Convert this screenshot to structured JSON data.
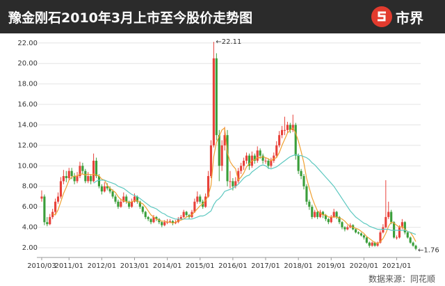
{
  "chart_data": {
    "type": "candlestick",
    "title": "豫金刚石2010年3月上市至今股价走势图",
    "logo": "市界",
    "source": "数据来源：同花顺",
    "categories": [
      "2010/03",
      null,
      null,
      null,
      null,
      null,
      null,
      null,
      null,
      null,
      "2011/01",
      null,
      null,
      null,
      null,
      null,
      null,
      null,
      null,
      null,
      null,
      null,
      "2012/01",
      null,
      null,
      null,
      null,
      null,
      null,
      null,
      null,
      null,
      null,
      null,
      "2013/01",
      null,
      null,
      null,
      null,
      null,
      null,
      null,
      null,
      null,
      null,
      null,
      "2014/01",
      null,
      null,
      null,
      null,
      null,
      null,
      null,
      null,
      null,
      null,
      null,
      "2015/01",
      null,
      null,
      null,
      null,
      null,
      null,
      null,
      null,
      null,
      null,
      null,
      "2016/01",
      null,
      null,
      null,
      null,
      null,
      null,
      null,
      null,
      null,
      null,
      null,
      "2017/01",
      null,
      null,
      null,
      null,
      null,
      null,
      null,
      null,
      null,
      null,
      null,
      "2018/01",
      null,
      null,
      null,
      null,
      null,
      null,
      null,
      null,
      null,
      null,
      null,
      "2019/01",
      null,
      null,
      null,
      null,
      null,
      null,
      null,
      null,
      null,
      null,
      null,
      "2020/01",
      null,
      null,
      null,
      null,
      null,
      null,
      null,
      null,
      null,
      null,
      null,
      "2021/01",
      null,
      null,
      null,
      null,
      null,
      null,
      null
    ],
    "candles": [
      [
        6.8,
        7.6,
        6.5,
        7.0
      ],
      [
        7.0,
        7.2,
        4.2,
        4.5
      ],
      [
        4.5,
        5.0,
        4.1,
        4.3
      ],
      [
        4.3,
        5.3,
        4.2,
        5.0
      ],
      [
        5.0,
        5.8,
        4.8,
        5.5
      ],
      [
        5.5,
        6.8,
        5.3,
        6.5
      ],
      [
        6.5,
        7.4,
        6.3,
        7.0
      ],
      [
        7.0,
        8.9,
        6.8,
        8.5
      ],
      [
        8.5,
        9.6,
        8.2,
        9.0
      ],
      [
        9.0,
        9.5,
        8.4,
        8.8
      ],
      [
        8.8,
        9.8,
        8.6,
        9.5
      ],
      [
        9.5,
        9.8,
        8.7,
        9.0
      ],
      [
        9.0,
        9.3,
        8.2,
        8.5
      ],
      [
        8.5,
        9.4,
        8.3,
        9.0
      ],
      [
        9.0,
        10.4,
        8.8,
        10.0
      ],
      [
        10.0,
        10.3,
        9.2,
        9.5
      ],
      [
        9.5,
        9.7,
        8.3,
        8.5
      ],
      [
        8.5,
        9.4,
        8.3,
        9.0
      ],
      [
        9.0,
        9.2,
        8.2,
        8.5
      ],
      [
        8.5,
        11.2,
        8.4,
        10.5
      ],
      [
        10.5,
        10.8,
        8.8,
        9.0
      ],
      [
        9.0,
        9.2,
        7.8,
        8.0
      ],
      [
        8.0,
        8.2,
        7.2,
        7.5
      ],
      [
        7.5,
        8.4,
        7.4,
        8.0
      ],
      [
        8.0,
        8.3,
        7.6,
        7.8
      ],
      [
        7.8,
        8.0,
        7.3,
        7.5
      ],
      [
        7.5,
        7.7,
        6.8,
        7.0
      ],
      [
        7.0,
        7.2,
        6.3,
        6.5
      ],
      [
        6.5,
        6.7,
        5.8,
        6.0
      ],
      [
        6.0,
        6.8,
        5.9,
        6.5
      ],
      [
        6.5,
        7.4,
        6.4,
        7.0
      ],
      [
        7.0,
        7.2,
        6.3,
        6.5
      ],
      [
        6.5,
        6.6,
        5.8,
        6.0
      ],
      [
        6.0,
        6.8,
        5.9,
        6.5
      ],
      [
        6.5,
        7.3,
        6.4,
        7.0
      ],
      [
        7.0,
        7.1,
        6.3,
        6.5
      ],
      [
        6.5,
        6.6,
        5.8,
        6.0
      ],
      [
        6.0,
        6.1,
        5.3,
        5.5
      ],
      [
        5.5,
        5.6,
        4.8,
        5.0
      ],
      [
        5.0,
        5.1,
        4.6,
        4.8
      ],
      [
        4.8,
        4.9,
        4.3,
        4.5
      ],
      [
        4.5,
        5.2,
        4.4,
        5.0
      ],
      [
        5.0,
        5.1,
        4.6,
        4.8
      ],
      [
        4.8,
        4.9,
        4.3,
        4.5
      ],
      [
        4.5,
        4.6,
        4.0,
        4.2
      ],
      [
        4.2,
        4.7,
        4.1,
        4.5
      ],
      [
        4.5,
        4.8,
        4.3,
        4.5
      ],
      [
        4.5,
        4.8,
        4.4,
        4.6
      ],
      [
        4.6,
        4.7,
        4.2,
        4.4
      ],
      [
        4.4,
        4.7,
        4.3,
        4.5
      ],
      [
        4.5,
        5.0,
        4.4,
        4.8
      ],
      [
        4.8,
        5.2,
        4.7,
        5.0
      ],
      [
        5.0,
        5.7,
        4.9,
        5.5
      ],
      [
        5.5,
        5.6,
        5.0,
        5.2
      ],
      [
        5.2,
        5.3,
        4.8,
        5.0
      ],
      [
        5.0,
        5.7,
        4.9,
        5.5
      ],
      [
        5.5,
        6.8,
        5.4,
        6.5
      ],
      [
        6.5,
        7.5,
        6.3,
        7.0
      ],
      [
        7.0,
        7.2,
        6.3,
        6.5
      ],
      [
        6.5,
        6.7,
        5.8,
        6.0
      ],
      [
        6.0,
        7.3,
        5.9,
        7.0
      ],
      [
        7.0,
        9.5,
        6.9,
        9.0
      ],
      [
        9.0,
        12.5,
        8.8,
        12.0
      ],
      [
        12.0,
        22.11,
        11.8,
        20.5
      ],
      [
        20.5,
        21.0,
        12.5,
        13.0
      ],
      [
        13.0,
        13.5,
        8.5,
        10.0
      ],
      [
        10.0,
        12.5,
        9.5,
        12.0
      ],
      [
        12.0,
        13.8,
        11.5,
        13.0
      ],
      [
        13.0,
        13.5,
        8.0,
        8.5
      ],
      [
        8.5,
        9.5,
        7.8,
        8.5
      ],
      [
        8.5,
        8.8,
        7.6,
        8.0
      ],
      [
        8.0,
        8.9,
        7.8,
        8.5
      ],
      [
        8.5,
        9.8,
        8.3,
        9.5
      ],
      [
        9.5,
        10.3,
        9.2,
        10.0
      ],
      [
        10.0,
        10.8,
        9.6,
        10.5
      ],
      [
        10.5,
        11.3,
        10.2,
        11.0
      ],
      [
        11.0,
        11.2,
        9.6,
        10.0
      ],
      [
        10.0,
        11.4,
        9.8,
        11.0
      ],
      [
        11.0,
        11.2,
        10.2,
        10.5
      ],
      [
        10.5,
        11.9,
        10.3,
        11.5
      ],
      [
        11.5,
        11.7,
        10.7,
        11.0
      ],
      [
        11.0,
        11.2,
        10.2,
        10.5
      ],
      [
        10.5,
        10.8,
        10.2,
        10.5
      ],
      [
        10.5,
        10.7,
        9.7,
        10.0
      ],
      [
        10.0,
        10.8,
        9.8,
        10.5
      ],
      [
        10.5,
        11.3,
        10.3,
        11.0
      ],
      [
        11.0,
        12.4,
        10.8,
        12.0
      ],
      [
        12.0,
        13.4,
        11.8,
        13.0
      ],
      [
        13.0,
        13.9,
        12.7,
        13.5
      ],
      [
        13.5,
        14.8,
        13.0,
        13.5
      ],
      [
        13.5,
        14.3,
        13.2,
        14.0
      ],
      [
        14.0,
        14.2,
        13.2,
        13.5
      ],
      [
        13.5,
        15.0,
        13.3,
        14.0
      ],
      [
        14.0,
        14.2,
        10.6,
        11.0
      ],
      [
        11.0,
        11.2,
        9.2,
        9.5
      ],
      [
        9.5,
        9.7,
        8.7,
        9.0
      ],
      [
        9.0,
        9.2,
        7.7,
        8.0
      ],
      [
        8.0,
        8.2,
        6.2,
        6.5
      ],
      [
        6.5,
        6.7,
        5.7,
        6.0
      ],
      [
        6.0,
        6.2,
        4.8,
        5.0
      ],
      [
        5.0,
        5.7,
        4.9,
        5.5
      ],
      [
        5.5,
        5.6,
        4.8,
        5.0
      ],
      [
        5.0,
        5.7,
        4.9,
        5.5
      ],
      [
        5.5,
        5.6,
        4.9,
        5.2
      ],
      [
        5.2,
        5.3,
        4.6,
        4.8
      ],
      [
        4.8,
        4.9,
        4.3,
        4.5
      ],
      [
        4.5,
        5.2,
        4.4,
        5.0
      ],
      [
        5.0,
        5.8,
        4.9,
        5.5
      ],
      [
        5.5,
        5.6,
        4.8,
        5.0
      ],
      [
        5.0,
        5.1,
        4.3,
        4.5
      ],
      [
        4.5,
        4.6,
        3.8,
        4.0
      ],
      [
        4.0,
        4.1,
        3.6,
        3.8
      ],
      [
        3.8,
        4.2,
        3.7,
        4.0
      ],
      [
        4.0,
        4.4,
        3.9,
        4.2
      ],
      [
        4.2,
        4.3,
        3.7,
        3.8
      ],
      [
        3.8,
        3.9,
        3.4,
        3.5
      ],
      [
        3.5,
        3.6,
        3.3,
        3.4
      ],
      [
        3.4,
        3.5,
        3.1,
        3.2
      ],
      [
        3.2,
        3.3,
        2.8,
        3.0
      ],
      [
        3.0,
        3.1,
        2.4,
        2.5
      ],
      [
        2.5,
        2.6,
        2.0,
        2.2
      ],
      [
        2.2,
        2.6,
        2.1,
        2.5
      ],
      [
        2.5,
        2.6,
        2.1,
        2.2
      ],
      [
        2.2,
        2.6,
        2.1,
        2.5
      ],
      [
        2.5,
        3.7,
        2.4,
        3.5
      ],
      [
        3.5,
        4.3,
        3.4,
        4.0
      ],
      [
        4.0,
        8.6,
        3.9,
        5.0
      ],
      [
        5.0,
        6.5,
        4.8,
        5.5
      ],
      [
        5.5,
        5.7,
        4.3,
        4.5
      ],
      [
        4.5,
        4.6,
        2.9,
        3.0
      ],
      [
        3.0,
        3.2,
        2.8,
        3.0
      ],
      [
        3.0,
        4.2,
        2.9,
        4.0
      ],
      [
        4.0,
        4.8,
        3.8,
        4.5
      ],
      [
        4.5,
        4.6,
        3.3,
        3.5
      ],
      [
        3.5,
        3.6,
        2.9,
        3.0
      ],
      [
        3.0,
        3.1,
        2.4,
        2.5
      ],
      [
        2.5,
        2.6,
        2.1,
        2.2
      ],
      [
        2.2,
        2.3,
        1.76,
        1.9
      ]
    ],
    "up_color": "#e8413a",
    "down_color": "#3a9e3a",
    "series": [
      {
        "color": "#f0a030",
        "values": [
          null,
          null,
          null,
          null,
          5.3,
          5.2,
          5.7,
          6.5,
          7.3,
          7.9,
          8.6,
          8.9,
          9.0,
          9.0,
          9.2,
          9.2,
          9.1,
          9.2,
          9.1,
          9.2,
          9.1,
          9.0,
          8.7,
          8.6,
          8.1,
          7.8,
          7.6,
          7.4,
          7.0,
          6.7,
          6.6,
          6.5,
          6.4,
          6.5,
          6.6,
          6.6,
          6.4,
          6.3,
          6.0,
          5.6,
          5.2,
          5.0,
          4.8,
          4.7,
          4.6,
          4.6,
          4.5,
          4.5,
          4.4,
          4.5,
          4.6,
          4.7,
          4.8,
          5.0,
          5.1,
          5.2,
          5.5,
          5.8,
          6.1,
          6.3,
          6.6,
          7.1,
          8.1,
          10.9,
          12.3,
          12.9,
          13.5,
          13.7,
          11.3,
          10.4,
          10.0,
          9.7,
          8.6,
          8.9,
          9.3,
          9.9,
          10.2,
          10.5,
          10.6,
          10.8,
          10.8,
          10.9,
          10.8,
          10.7,
          10.5,
          10.7,
          10.8,
          11.3,
          12.0,
          12.6,
          13.2,
          13.5,
          13.7,
          13.2,
          12.4,
          11.4,
          10.3,
          8.8,
          7.8,
          6.9,
          6.2,
          5.6,
          5.4,
          5.2,
          5.2,
          5.0,
          5.0,
          5.0,
          5.0,
          4.9,
          4.8,
          4.6,
          4.3,
          4.1,
          4.0,
          3.9,
          3.8,
          3.6,
          3.4,
          3.1,
          2.9,
          2.7,
          2.5,
          2.4,
          2.6,
          2.9,
          3.4,
          4.1,
          4.5,
          4.4,
          4.2,
          4.0,
          4.1,
          3.8,
          3.6,
          3.5,
          3.1,
          2.6
        ]
      },
      {
        "color": "#5cc8c0",
        "values": [
          null,
          null,
          null,
          null,
          null,
          null,
          null,
          null,
          null,
          null,
          null,
          null,
          null,
          null,
          null,
          null,
          null,
          null,
          null,
          8.3,
          8.5,
          8.6,
          8.6,
          8.6,
          8.5,
          8.4,
          8.3,
          8.2,
          8.0,
          7.9,
          7.8,
          7.6,
          7.4,
          7.2,
          7.1,
          7.0,
          6.8,
          6.6,
          6.4,
          6.2,
          6.0,
          5.9,
          5.8,
          5.6,
          5.4,
          5.3,
          5.1,
          5.0,
          4.9,
          4.8,
          4.8,
          4.8,
          4.8,
          4.8,
          4.8,
          4.8,
          4.9,
          5.0,
          5.1,
          5.1,
          5.2,
          5.4,
          5.6,
          6.2,
          6.6,
          6.8,
          7.1,
          7.5,
          7.6,
          7.7,
          7.8,
          8.0,
          8.2,
          8.5,
          8.8,
          9.0,
          9.1,
          9.4,
          9.6,
          9.8,
          10.0,
          10.1,
          10.0,
          9.8,
          9.7,
          9.8,
          9.9,
          10.1,
          10.3,
          10.5,
          10.7,
          10.9,
          11.0,
          11.1,
          11.0,
          11.0,
          10.9,
          10.8,
          10.6,
          10.3,
          10.1,
          9.8,
          9.5,
          9.2,
          8.9,
          8.6,
          8.3,
          8.0,
          7.6,
          7.2,
          6.8,
          6.4,
          6.0,
          5.6,
          5.3,
          5.0,
          4.8,
          4.6,
          4.4,
          4.3,
          4.1,
          4.0,
          3.9,
          3.8,
          3.8,
          3.8,
          3.8,
          3.8,
          3.7,
          3.7,
          3.7,
          3.7,
          3.7,
          3.7,
          3.6,
          3.5,
          3.4,
          3.3
        ]
      }
    ],
    "annotations": [
      {
        "label": "←22.11",
        "value": 22.11
      },
      {
        "label": "←1.76",
        "value": 1.76
      }
    ],
    "ylim": [
      1.05,
      22.8
    ],
    "yticks": [
      {
        "value": 2,
        "label": "2.00"
      },
      {
        "value": 4,
        "label": "4.00"
      },
      {
        "value": 6,
        "label": "6.00"
      },
      {
        "value": 8,
        "label": "8.00"
      },
      {
        "value": 10,
        "label": "10.00"
      },
      {
        "value": 12,
        "label": "12.00"
      },
      {
        "value": 14,
        "label": "14.00"
      },
      {
        "value": 16,
        "label": "16.00"
      },
      {
        "value": 18,
        "label": "18.00"
      },
      {
        "value": 20,
        "label": "20.00"
      },
      {
        "value": 22,
        "label": "22.00"
      }
    ],
    "grid": true
  }
}
